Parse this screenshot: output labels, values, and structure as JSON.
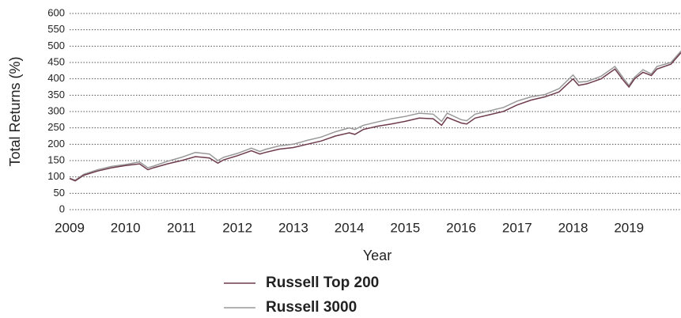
{
  "chart_data": {
    "type": "line",
    "x_label": "Year",
    "y_label": "Total Returns (%)",
    "x": [
      2009.0,
      2009.1,
      2009.25,
      2009.5,
      2009.75,
      2010.0,
      2010.25,
      2010.4,
      2010.5,
      2010.75,
      2011.0,
      2011.25,
      2011.5,
      2011.65,
      2011.75,
      2012.0,
      2012.25,
      2012.4,
      2012.5,
      2012.75,
      2013.0,
      2013.25,
      2013.5,
      2013.75,
      2014.0,
      2014.1,
      2014.25,
      2014.5,
      2014.75,
      2015.0,
      2015.25,
      2015.5,
      2015.65,
      2015.75,
      2016.0,
      2016.1,
      2016.25,
      2016.5,
      2016.75,
      2017.0,
      2017.25,
      2017.5,
      2017.75,
      2018.0,
      2018.1,
      2018.25,
      2018.5,
      2018.75,
      2018.9,
      2019.0,
      2019.1,
      2019.25,
      2019.4,
      2019.5,
      2019.75,
      2019.93
    ],
    "series": [
      {
        "name": "Russell Top 200",
        "color": "#6e3b4b",
        "values": [
          95,
          88,
          105,
          118,
          128,
          135,
          140,
          122,
          128,
          140,
          150,
          162,
          158,
          142,
          152,
          165,
          180,
          170,
          175,
          185,
          190,
          200,
          210,
          225,
          235,
          230,
          245,
          255,
          262,
          270,
          280,
          278,
          258,
          282,
          265,
          262,
          280,
          290,
          300,
          320,
          335,
          345,
          360,
          400,
          380,
          385,
          400,
          430,
          395,
          375,
          400,
          420,
          410,
          430,
          445,
          480
        ]
      },
      {
        "name": "Russell 3000",
        "color": "#999999",
        "values": [
          96,
          90,
          108,
          122,
          132,
          138,
          146,
          128,
          133,
          148,
          160,
          175,
          170,
          150,
          160,
          172,
          188,
          178,
          184,
          195,
          200,
          212,
          222,
          238,
          250,
          245,
          258,
          268,
          278,
          285,
          295,
          292,
          270,
          295,
          275,
          272,
          292,
          302,
          312,
          332,
          345,
          352,
          370,
          412,
          390,
          392,
          408,
          438,
          402,
          380,
          405,
          428,
          415,
          438,
          450,
          485
        ]
      }
    ],
    "xlim": [
      2009,
      2019.93
    ],
    "xticks": [
      2009,
      2010,
      2011,
      2012,
      2013,
      2014,
      2015,
      2016,
      2017,
      2018,
      2019
    ],
    "ylim": [
      0,
      600
    ],
    "yticks": [
      0,
      50,
      100,
      150,
      200,
      250,
      300,
      350,
      400,
      450,
      500,
      550,
      600
    ],
    "grid": true
  }
}
